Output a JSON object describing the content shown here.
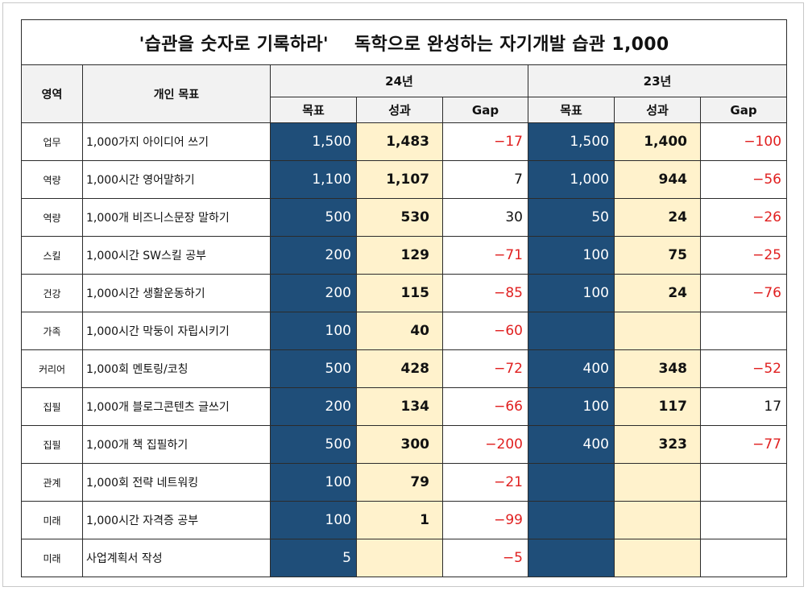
{
  "title": {
    "left": "'습관을 숫자로 기록하라'",
    "right": "독학으로 완성하는 자기개발 습관 1,000"
  },
  "headers": {
    "area": "영역",
    "goal": "개인 목표",
    "year_a": "24년",
    "year_b": "23년",
    "target": "목표",
    "result": "성과",
    "gap": "Gap"
  },
  "colors": {
    "target_fill": "#1f4e79",
    "result_fill": "#fff2cc",
    "negative_text": "#e02020"
  },
  "rows": [
    {
      "area": "업무",
      "goal": "1,000가지 아이디어 쓰기",
      "t24": "1,500",
      "r24": "1,483",
      "g24": "-17",
      "t23": "1,500",
      "r23": "1,400",
      "g23": "-100"
    },
    {
      "area": "역량",
      "goal": "1,000시간 영어말하기",
      "t24": "1,100",
      "r24": "1,107",
      "g24": "7",
      "t23": "1,000",
      "r23": "944",
      "g23": "-56"
    },
    {
      "area": "역량",
      "goal": "1,000개 비즈니스문장 말하기",
      "t24": "500",
      "r24": "530",
      "g24": "30",
      "t23": "50",
      "r23": "24",
      "g23": "-26"
    },
    {
      "area": "스킬",
      "goal": "1,000시간 SW스킬 공부",
      "t24": "200",
      "r24": "129",
      "g24": "-71",
      "t23": "100",
      "r23": "75",
      "g23": "-25"
    },
    {
      "area": "건강",
      "goal": "1,000시간 생활운동하기",
      "t24": "200",
      "r24": "115",
      "g24": "-85",
      "t23": "100",
      "r23": "24",
      "g23": "-76"
    },
    {
      "area": "가족",
      "goal": "1,000시간 막둥이 자립시키기",
      "t24": "100",
      "r24": "40",
      "g24": "-60",
      "t23": "",
      "r23": "",
      "g23": ""
    },
    {
      "area": "커리어",
      "goal": "1,000회 멘토링/코칭",
      "t24": "500",
      "r24": "428",
      "g24": "-72",
      "t23": "400",
      "r23": "348",
      "g23": "-52"
    },
    {
      "area": "집필",
      "goal": "1,000개 블로그콘텐츠 글쓰기",
      "t24": "200",
      "r24": "134",
      "g24": "-66",
      "t23": "100",
      "r23": "117",
      "g23": "17"
    },
    {
      "area": "집필",
      "goal": "1,000개 책 집필하기",
      "t24": "500",
      "r24": "300",
      "g24": "-200",
      "t23": "400",
      "r23": "323",
      "g23": "-77"
    },
    {
      "area": "관계",
      "goal": "1,000회 전략 네트워킹",
      "t24": "100",
      "r24": "79",
      "g24": "-21",
      "t23": "",
      "r23": "",
      "g23": ""
    },
    {
      "area": "미래",
      "goal": "1,000시간 자격증 공부",
      "t24": "100",
      "r24": "1",
      "g24": "-99",
      "t23": "",
      "r23": "",
      "g23": ""
    },
    {
      "area": "미래",
      "goal": "사업계획서 작성",
      "t24": "5",
      "r24": "",
      "g24": "-5",
      "t23": "",
      "r23": "",
      "g23": ""
    }
  ]
}
